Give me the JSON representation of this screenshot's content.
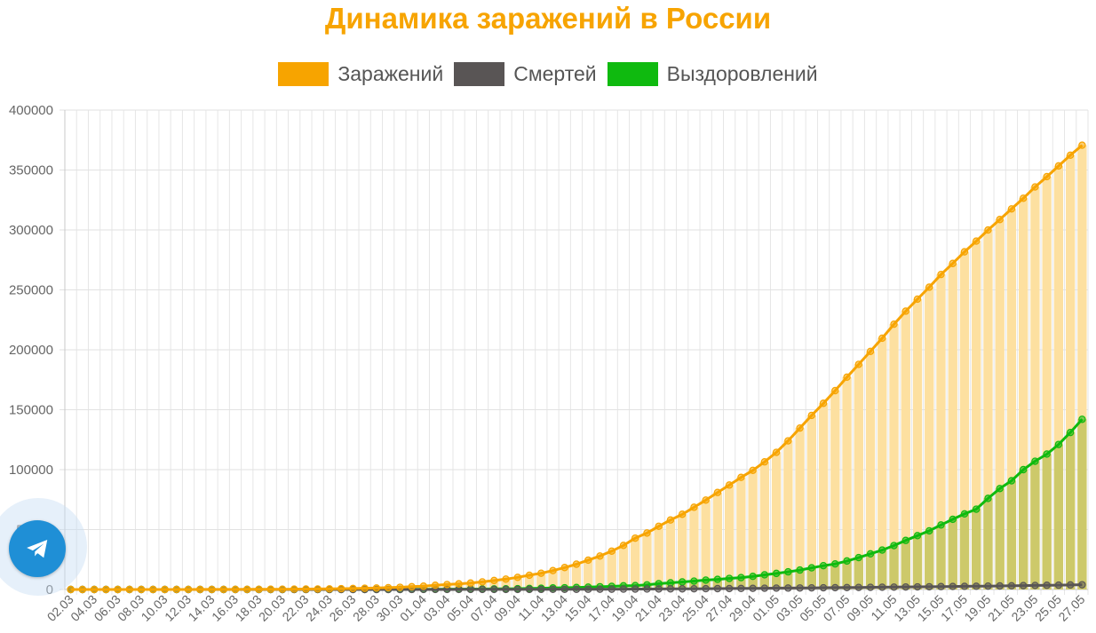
{
  "chart_data": {
    "type": "bar+line",
    "title": "Динамика заражений в России",
    "xlabel": "",
    "ylabel": "",
    "ylim": [
      0,
      400000
    ],
    "yticks": [
      0,
      50000,
      100000,
      150000,
      200000,
      250000,
      300000,
      350000,
      400000
    ],
    "grid": true,
    "legend_position": "top",
    "categories": [
      "02.03",
      "03.03",
      "04.03",
      "05.03",
      "06.03",
      "07.03",
      "08.03",
      "09.03",
      "10.03",
      "11.03",
      "12.03",
      "13.03",
      "14.03",
      "15.03",
      "16.03",
      "17.03",
      "18.03",
      "19.03",
      "20.03",
      "21.03",
      "22.03",
      "23.03",
      "24.03",
      "25.03",
      "26.03",
      "27.03",
      "28.03",
      "29.03",
      "30.03",
      "31.03",
      "01.04",
      "02.04",
      "03.04",
      "04.04",
      "05.04",
      "06.04",
      "07.04",
      "08.04",
      "09.04",
      "10.04",
      "11.04",
      "12.04",
      "13.04",
      "14.04",
      "15.04",
      "16.04",
      "17.04",
      "18.04",
      "19.04",
      "20.04",
      "21.04",
      "22.04",
      "23.04",
      "24.04",
      "25.04",
      "26.04",
      "27.04",
      "28.04",
      "29.04",
      "30.04",
      "01.05",
      "02.05",
      "03.05",
      "04.05",
      "05.05",
      "06.05",
      "07.05",
      "08.05",
      "09.05",
      "10.05",
      "11.05",
      "12.05",
      "13.05",
      "14.05",
      "15.05",
      "16.05",
      "17.05",
      "18.05",
      "19.05",
      "20.05",
      "21.05",
      "22.05",
      "23.05",
      "24.05",
      "25.05",
      "26.05",
      "27.05"
    ],
    "x_tick_labels": [
      "02.03",
      "04.03",
      "06.03",
      "08.03",
      "10.03",
      "12.03",
      "14.03",
      "16.03",
      "18.03",
      "20.03",
      "22.03",
      "24.03",
      "26.03",
      "28.03",
      "30.03",
      "01.04",
      "03.04",
      "05.04",
      "07.04",
      "09.04",
      "11.04",
      "13.04",
      "15.04",
      "17.04",
      "19.04",
      "21.04",
      "23.04",
      "25.04",
      "27.04",
      "29.04",
      "01.05",
      "03.05",
      "05.05",
      "07.05",
      "09.05",
      "11.05",
      "13.05",
      "15.05",
      "17.05",
      "19.05",
      "21.05",
      "23.05",
      "25.05",
      "27.05"
    ],
    "series": [
      {
        "name": "Заражений",
        "color": "#f7a400",
        "bar_color": "#fde0a0",
        "values": [
          3,
          3,
          3,
          4,
          4,
          10,
          10,
          17,
          20,
          28,
          34,
          45,
          59,
          63,
          90,
          114,
          147,
          199,
          253,
          306,
          367,
          438,
          495,
          658,
          840,
          1036,
          1264,
          1534,
          1836,
          2337,
          2777,
          3548,
          4149,
          4731,
          5389,
          6343,
          7497,
          8672,
          10131,
          11917,
          13584,
          15770,
          18328,
          21102,
          24490,
          27938,
          32008,
          36793,
          42853,
          47121,
          52763,
          57999,
          62773,
          68622,
          74588,
          80949,
          87147,
          93558,
          99399,
          106498,
          114431,
          124054,
          134687,
          145268,
          155370,
          165929,
          177160,
          187859,
          198676,
          209688,
          221344,
          232243,
          242271,
          252245,
          262843,
          272043,
          281752,
          290678,
          299941,
          308705,
          317554,
          326448,
          335882,
          344481,
          353427,
          362342,
          370680
        ]
      },
      {
        "name": "Смертей",
        "color": "#595555",
        "values": [
          0,
          0,
          0,
          0,
          0,
          0,
          0,
          0,
          0,
          0,
          0,
          0,
          0,
          0,
          0,
          0,
          0,
          1,
          1,
          1,
          1,
          1,
          2,
          3,
          3,
          4,
          4,
          8,
          9,
          17,
          24,
          30,
          34,
          43,
          45,
          47,
          58,
          63,
          76,
          94,
          106,
          130,
          148,
          170,
          198,
          232,
          273,
          313,
          361,
          405,
          456,
          513,
          555,
          615,
          681,
          747,
          794,
          867,
          972,
          1073,
          1169,
          1222,
          1280,
          1356,
          1451,
          1537,
          1625,
          1723,
          1827,
          1915,
          2009,
          2116,
          2212,
          2305,
          2418,
          2537,
          2631,
          2722,
          2837,
          2972,
          3099,
          3249,
          3388,
          3541,
          3633,
          3807,
          3968
        ]
      },
      {
        "name": "Выздоровлений",
        "color": "#0fba0f",
        "values": [
          0,
          0,
          0,
          0,
          0,
          0,
          0,
          0,
          0,
          2,
          3,
          3,
          3,
          5,
          5,
          5,
          5,
          8,
          9,
          16,
          16,
          17,
          22,
          29,
          38,
          49,
          58,
          66,
          66,
          121,
          190,
          235,
          281,
          333,
          355,
          406,
          494,
          580,
          698,
          901,
          1045,
          1291,
          1470,
          1694,
          1986,
          2298,
          2590,
          3057,
          3273,
          3873,
          4891,
          5568,
          6310,
          7013,
          7842,
          8454,
          9236,
          9931,
          10954,
          12250,
          13418,
          14740,
          16219,
          18095,
          19865,
          21327,
          23803,
          26608,
          29762,
          32900,
          36655,
          40944,
          44936,
          48952,
          53834,
          58564,
          63098,
          67018,
          76025,
          84213,
          90733,
          100000,
          107000,
          113000,
          121000,
          131000,
          142000
        ]
      }
    ]
  }
}
